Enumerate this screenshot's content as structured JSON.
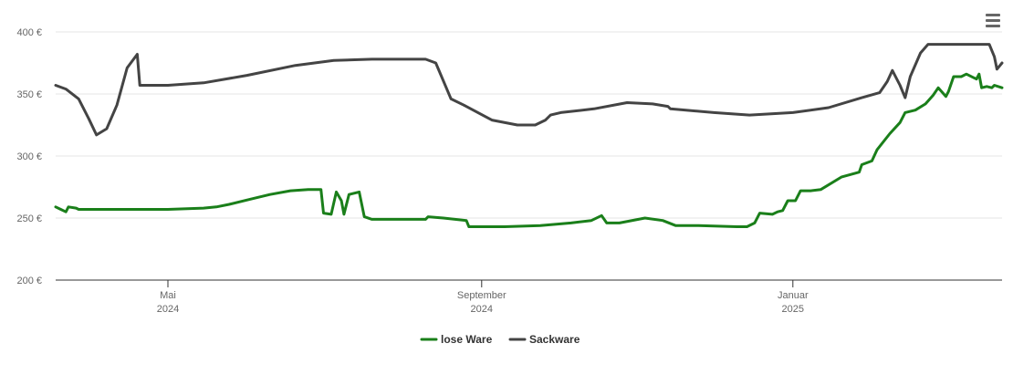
{
  "menu": {
    "icon": "hamburger-menu-icon"
  },
  "chart_data": {
    "type": "line",
    "x_range": [
      "2024-03-18",
      "2025-03-24"
    ],
    "ylim": [
      200,
      400
    ],
    "y_ticks": [
      {
        "value": 200,
        "label": "200 €"
      },
      {
        "value": 250,
        "label": "250 €"
      },
      {
        "value": 300,
        "label": "300 €"
      },
      {
        "value": 350,
        "label": "350 €"
      },
      {
        "value": 400,
        "label": "400 €"
      }
    ],
    "x_ticks": [
      {
        "date": "2024-05-01",
        "month": "Mai",
        "year": "2024"
      },
      {
        "date": "2024-09-01",
        "month": "September",
        "year": "2024"
      },
      {
        "date": "2025-01-01",
        "month": "Januar",
        "year": "2025"
      }
    ],
    "grid": true,
    "legend": "bottom-center",
    "series": [
      {
        "name": "lose Ware",
        "color": "#1a7f1a",
        "points": [
          [
            "2024-03-18",
            259
          ],
          [
            "2024-03-20",
            257
          ],
          [
            "2024-03-22",
            255
          ],
          [
            "2024-03-23",
            259
          ],
          [
            "2024-03-26",
            258
          ],
          [
            "2024-03-27",
            257
          ],
          [
            "2024-04-10",
            257
          ],
          [
            "2024-05-01",
            257
          ],
          [
            "2024-05-15",
            258
          ],
          [
            "2024-05-20",
            259
          ],
          [
            "2024-05-25",
            261
          ],
          [
            "2024-06-02",
            265
          ],
          [
            "2024-06-10",
            269
          ],
          [
            "2024-06-18",
            272
          ],
          [
            "2024-06-25",
            273
          ],
          [
            "2024-06-30",
            273
          ],
          [
            "2024-07-01",
            254
          ],
          [
            "2024-07-04",
            253
          ],
          [
            "2024-07-06",
            271
          ],
          [
            "2024-07-08",
            264
          ],
          [
            "2024-07-09",
            253
          ],
          [
            "2024-07-11",
            269
          ],
          [
            "2024-07-15",
            271
          ],
          [
            "2024-07-17",
            251
          ],
          [
            "2024-07-20",
            249
          ],
          [
            "2024-08-10",
            249
          ],
          [
            "2024-08-11",
            251
          ],
          [
            "2024-08-17",
            250
          ],
          [
            "2024-08-26",
            248
          ],
          [
            "2024-08-27",
            243
          ],
          [
            "2024-09-10",
            243
          ],
          [
            "2024-09-24",
            244
          ],
          [
            "2024-10-06",
            246
          ],
          [
            "2024-10-14",
            248
          ],
          [
            "2024-10-18",
            252
          ],
          [
            "2024-10-20",
            246
          ],
          [
            "2024-10-25",
            246
          ],
          [
            "2024-11-04",
            250
          ],
          [
            "2024-11-11",
            248
          ],
          [
            "2024-11-16",
            244
          ],
          [
            "2024-11-25",
            244
          ],
          [
            "2024-12-10",
            243
          ],
          [
            "2024-12-14",
            243
          ],
          [
            "2024-12-17",
            246
          ],
          [
            "2024-12-19",
            254
          ],
          [
            "2024-12-24",
            253
          ],
          [
            "2024-12-26",
            255
          ],
          [
            "2024-12-28",
            256
          ],
          [
            "2024-12-30",
            264
          ],
          [
            "2025-01-02",
            264
          ],
          [
            "2025-01-04",
            272
          ],
          [
            "2025-01-08",
            272
          ],
          [
            "2025-01-12",
            273
          ],
          [
            "2025-01-20",
            283
          ],
          [
            "2025-01-27",
            287
          ],
          [
            "2025-01-28",
            293
          ],
          [
            "2025-02-01",
            296
          ],
          [
            "2025-02-03",
            305
          ],
          [
            "2025-02-08",
            318
          ],
          [
            "2025-02-12",
            327
          ],
          [
            "2025-02-14",
            335
          ],
          [
            "2025-02-18",
            337
          ],
          [
            "2025-02-22",
            342
          ],
          [
            "2025-02-25",
            349
          ],
          [
            "2025-02-27",
            355
          ],
          [
            "2025-03-02",
            348
          ],
          [
            "2025-03-03",
            352
          ],
          [
            "2025-03-05",
            364
          ],
          [
            "2025-03-08",
            364
          ],
          [
            "2025-03-10",
            366
          ],
          [
            "2025-03-14",
            362
          ],
          [
            "2025-03-15",
            366
          ],
          [
            "2025-03-16",
            355
          ],
          [
            "2025-03-18",
            356
          ],
          [
            "2025-03-20",
            355
          ],
          [
            "2025-03-21",
            357
          ],
          [
            "2025-03-24",
            355
          ]
        ]
      },
      {
        "name": "Sackware",
        "color": "#444444",
        "points": [
          [
            "2024-03-18",
            357
          ],
          [
            "2024-03-22",
            354
          ],
          [
            "2024-03-27",
            346
          ],
          [
            "2024-03-31",
            330
          ],
          [
            "2024-04-03",
            317
          ],
          [
            "2024-04-07",
            322
          ],
          [
            "2024-04-11",
            341
          ],
          [
            "2024-04-15",
            371
          ],
          [
            "2024-04-19",
            382
          ],
          [
            "2024-04-20",
            357
          ],
          [
            "2024-05-01",
            357
          ],
          [
            "2024-05-15",
            359
          ],
          [
            "2024-06-01",
            365
          ],
          [
            "2024-06-20",
            373
          ],
          [
            "2024-07-05",
            377
          ],
          [
            "2024-07-20",
            378
          ],
          [
            "2024-08-10",
            378
          ],
          [
            "2024-08-14",
            375
          ],
          [
            "2024-08-20",
            346
          ],
          [
            "2024-08-25",
            341
          ],
          [
            "2024-09-05",
            329
          ],
          [
            "2024-09-15",
            325
          ],
          [
            "2024-09-22",
            325
          ],
          [
            "2024-09-26",
            329
          ],
          [
            "2024-09-28",
            333
          ],
          [
            "2024-10-02",
            335
          ],
          [
            "2024-10-15",
            338
          ],
          [
            "2024-10-28",
            343
          ],
          [
            "2024-11-07",
            342
          ],
          [
            "2024-11-13",
            340
          ],
          [
            "2024-11-14",
            338
          ],
          [
            "2024-12-01",
            335
          ],
          [
            "2024-12-15",
            333
          ],
          [
            "2025-01-01",
            335
          ],
          [
            "2025-01-15",
            339
          ],
          [
            "2025-01-28",
            347
          ],
          [
            "2025-02-04",
            351
          ],
          [
            "2025-02-07",
            360
          ],
          [
            "2025-02-09",
            369
          ],
          [
            "2025-02-12",
            357
          ],
          [
            "2025-02-14",
            347
          ],
          [
            "2025-02-16",
            364
          ],
          [
            "2025-02-20",
            383
          ],
          [
            "2025-02-23",
            390
          ],
          [
            "2025-03-10",
            390
          ],
          [
            "2025-03-19",
            390
          ],
          [
            "2025-03-21",
            380
          ],
          [
            "2025-03-22",
            370
          ],
          [
            "2025-03-24",
            375
          ]
        ]
      }
    ]
  }
}
